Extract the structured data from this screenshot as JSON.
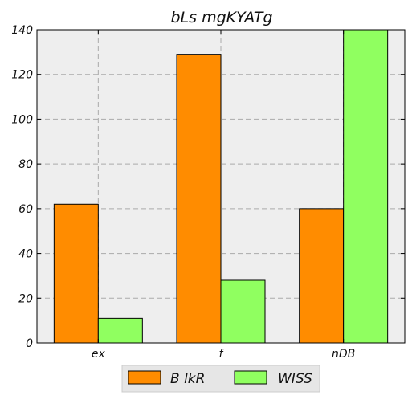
{
  "chart_data": {
    "type": "bar",
    "title": "bLs mgKYATg",
    "xlabel": "",
    "ylabel": "",
    "categories": [
      "ex",
      "f",
      "nDB"
    ],
    "series": [
      {
        "name": "B lkR",
        "values": [
          62,
          129,
          60
        ],
        "color": "#ff8c00"
      },
      {
        "name": "WISS",
        "values": [
          11,
          28,
          140
        ],
        "color": "#90ff60"
      }
    ],
    "ylim": [
      0,
      140
    ],
    "yticks": [
      0,
      20,
      40,
      60,
      80,
      100,
      120,
      140
    ],
    "grid": true,
    "legend_position": "bottom-center",
    "background": "#eeeeee"
  }
}
